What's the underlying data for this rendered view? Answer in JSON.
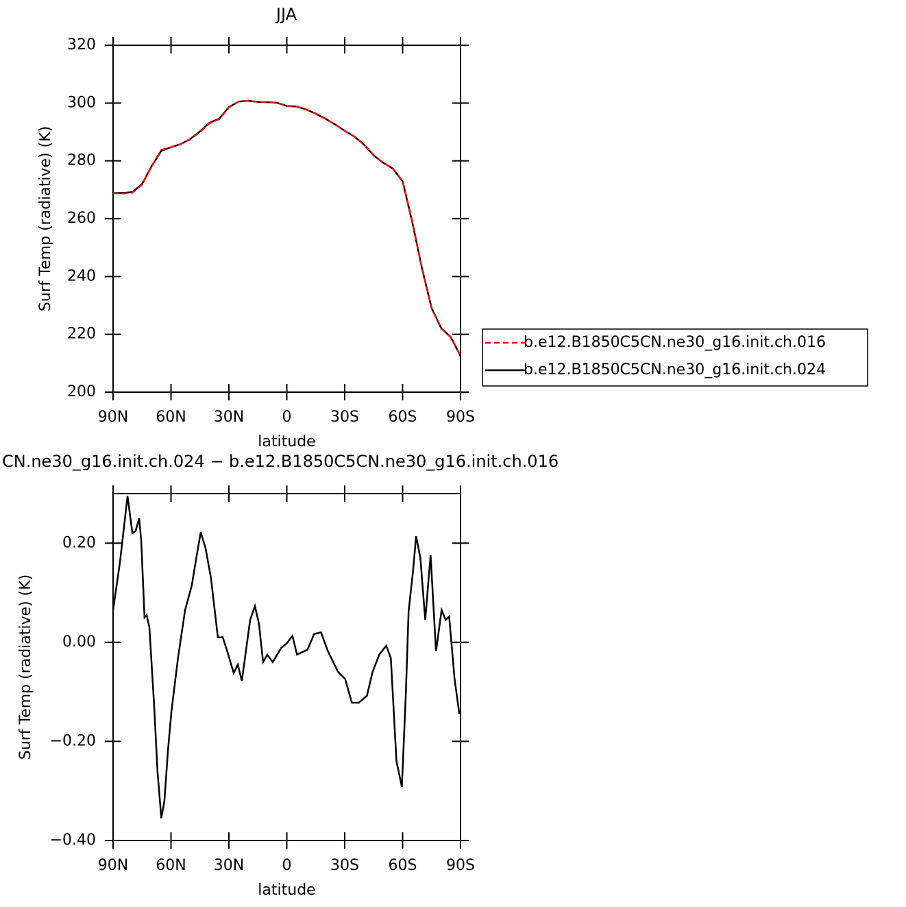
{
  "chart_data": [
    {
      "type": "line",
      "title": "JJA",
      "x_label": "latitude",
      "y_label": "Surf Temp (radiative) (K)",
      "xlim": [
        90,
        -90
      ],
      "xticks": [
        {
          "value": 90,
          "label": "90N"
        },
        {
          "value": 60,
          "label": "60N"
        },
        {
          "value": 30,
          "label": "30N"
        },
        0,
        {
          "value": -30,
          "label": "30S"
        },
        {
          "value": -60,
          "label": "60S"
        },
        {
          "value": -90,
          "label": "90S"
        }
      ],
      "ylim": [
        200,
        320
      ],
      "yticks": [
        200,
        220,
        240,
        260,
        280,
        300,
        320
      ],
      "legend": "right",
      "x": [
        90,
        85,
        80,
        75,
        70,
        65,
        60,
        55,
        50,
        45,
        40,
        35,
        30,
        25,
        20,
        15,
        10,
        5,
        0,
        -5,
        -10,
        -15,
        -20,
        -25,
        -30,
        -35,
        -40,
        -45,
        -50,
        -55,
        -60,
        -65,
        -70,
        -75,
        -80,
        -85,
        -90
      ],
      "series": [
        {
          "name": "b.e12.B1850C5CN.ne30_g16.init.ch.016",
          "color": "#ff0000",
          "dash": true,
          "values": [
            268.8,
            268.7,
            269.0,
            271.8,
            278.2,
            283.8,
            284.7,
            285.8,
            287.5,
            290.0,
            293.0,
            294.4,
            298.5,
            300.5,
            300.8,
            300.4,
            300.3,
            300.1,
            299.0,
            298.8,
            297.8,
            296.3,
            294.6,
            292.6,
            290.4,
            288.4,
            285.7,
            282.0,
            279.3,
            277.3,
            273.0,
            259.0,
            243.0,
            229.0,
            222.0,
            219.0,
            212.5
          ]
        },
        {
          "name": "b.e12.B1850C5CN.ne30_g16.init.ch.024",
          "color": "#000000",
          "dash": false,
          "values": [
            268.9,
            268.9,
            269.2,
            272.0,
            278.2,
            283.5,
            284.7,
            285.8,
            287.6,
            290.2,
            293.2,
            294.6,
            298.6,
            300.5,
            300.8,
            300.4,
            300.3,
            300.1,
            299.0,
            298.8,
            297.8,
            296.3,
            294.6,
            292.6,
            290.4,
            288.4,
            285.6,
            281.9,
            279.3,
            277.3,
            272.9,
            258.8,
            242.9,
            229.1,
            222.1,
            219.0,
            212.4
          ]
        }
      ]
    },
    {
      "type": "line",
      "title": "CN.ne30_g16.init.ch.024 − b.e12.B1850C5CN.ne30_g16.init.ch.016",
      "x_label": "latitude",
      "y_label": "Surf Temp (radiative) (K)",
      "xlim": [
        90,
        -90
      ],
      "xticks": [
        {
          "value": 90,
          "label": "90N"
        },
        {
          "value": 60,
          "label": "60N"
        },
        {
          "value": 30,
          "label": "30N"
        },
        0,
        {
          "value": -30,
          "label": "30S"
        },
        {
          "value": -60,
          "label": "60S"
        },
        {
          "value": -90,
          "label": "90S"
        }
      ],
      "ylim": [
        -0.4,
        0.3
      ],
      "yticks": [
        {
          "value": -0.4,
          "label": "−0.40"
        },
        {
          "value": -0.2,
          "label": "−0.20"
        },
        {
          "value": 0,
          "label": "0.00"
        },
        {
          "value": 0.2,
          "label": "0.20"
        }
      ],
      "color": "#000000",
      "x": [
        90,
        86.5,
        82.5,
        80,
        78.3,
        76.5,
        75.4,
        73.7,
        72.6,
        71.2,
        68.7,
        67,
        65,
        63.4,
        61.6,
        59.8,
        56.3,
        52.7,
        49.2,
        46.7,
        44.6,
        42.1,
        39.3,
        35.7,
        33.2,
        30.7,
        27.5,
        25.4,
        23.3,
        19,
        16.5,
        14.4,
        12.3,
        10.1,
        7.3,
        3,
        0,
        -2.9,
        -5.3,
        -10.7,
        -14.2,
        -17.7,
        -21.3,
        -26.6,
        -30.2,
        -33.7,
        -37.3,
        -41.5,
        -44.4,
        -47.9,
        -51.5,
        -53.9,
        -56.8,
        -59.6,
        -61.7,
        -63.1,
        -65.3,
        -67,
        -69.2,
        -71.7,
        -74.5,
        -77.3,
        -80.2,
        -82.3,
        -84.1,
        -86.9,
        -89.4
      ],
      "values": [
        0.065,
        0.16,
        0.295,
        0.22,
        0.225,
        0.25,
        0.205,
        0.05,
        0.055,
        0.03,
        -0.13,
        -0.26,
        -0.355,
        -0.32,
        -0.22,
        -0.14,
        -0.03,
        0.065,
        0.115,
        0.175,
        0.222,
        0.19,
        0.13,
        0.01,
        0.01,
        -0.02,
        -0.062,
        -0.045,
        -0.078,
        0.045,
        0.073,
        0.037,
        -0.04,
        -0.025,
        -0.04,
        -0.012,
        -0.002,
        0.013,
        -0.025,
        -0.015,
        0.017,
        0.02,
        -0.018,
        -0.06,
        -0.074,
        -0.122,
        -0.122,
        -0.108,
        -0.06,
        -0.025,
        -0.007,
        -0.032,
        -0.24,
        -0.292,
        -0.1,
        0.062,
        0.14,
        0.214,
        0.17,
        0.045,
        0.176,
        -0.018,
        0.065,
        0.045,
        0.052,
        -0.074,
        -0.145
      ]
    }
  ]
}
